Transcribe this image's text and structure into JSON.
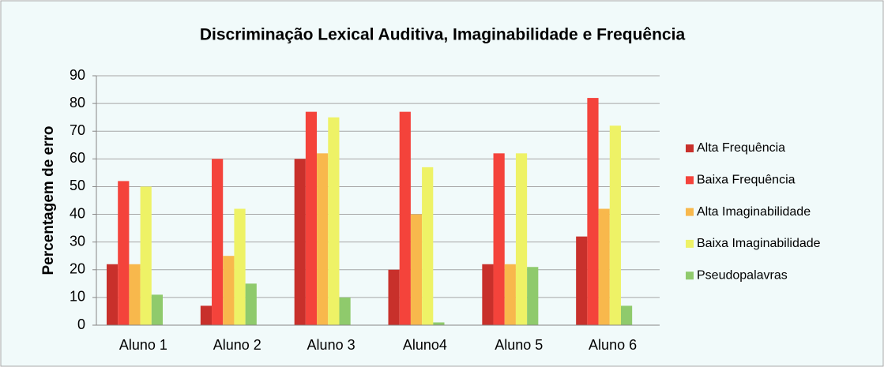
{
  "chart_data": {
    "type": "bar",
    "title": "Discriminação Lexical Auditiva, Imaginabilidade e Frequência",
    "y_label": "Percentagem de erro",
    "categories": [
      "Aluno 1",
      "Aluno 2",
      "Aluno 3",
      "Aluno4",
      "Aluno 5",
      "Aluno 6"
    ],
    "series": [
      {
        "name": "Alta Frequência",
        "color": "#c8302b",
        "values": [
          22,
          7,
          60,
          20,
          22,
          32
        ]
      },
      {
        "name": "Baixa Frequência",
        "color": "#f4433b",
        "values": [
          52,
          60,
          77,
          77,
          62,
          82
        ]
      },
      {
        "name": "Alta Imaginabilidade",
        "color": "#f8b84c",
        "values": [
          22,
          25,
          62,
          40,
          22,
          42
        ]
      },
      {
        "name": "Baixa Imaginabilidade",
        "color": "#eef266",
        "values": [
          50,
          42,
          75,
          57,
          62,
          72
        ]
      },
      {
        "name": "Pseudopalavras",
        "color": "#8fca6c",
        "values": [
          11,
          15,
          10,
          1,
          21,
          7
        ]
      }
    ],
    "ylim": [
      0,
      90
    ],
    "yticks": [
      0,
      10,
      20,
      30,
      40,
      50,
      60,
      70,
      80,
      90
    ],
    "grid": true
  }
}
